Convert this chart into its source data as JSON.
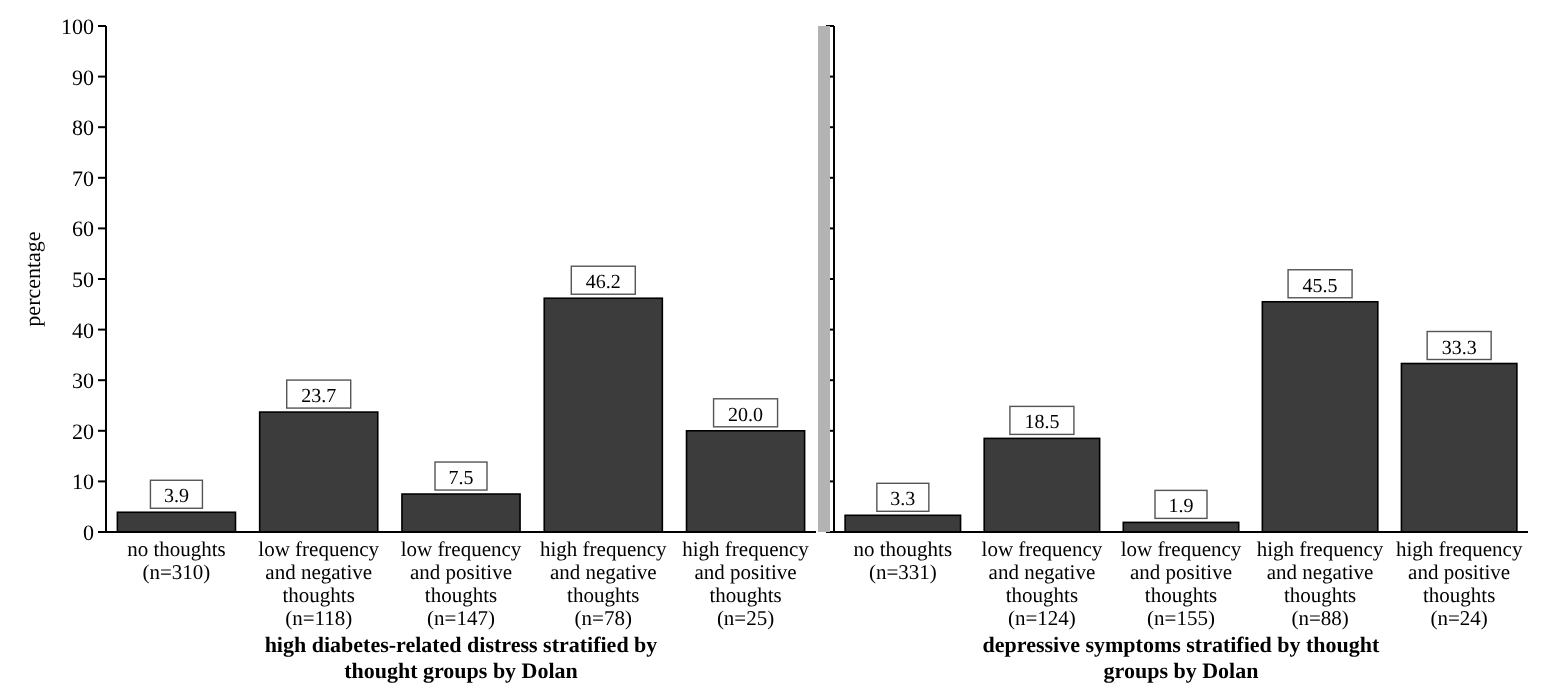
{
  "chart_data": [
    {
      "type": "bar",
      "ylabel": "percentage",
      "xlabel": "high diabetes-related distress stratified by thought groups by Dolan",
      "categories": [
        "no thoughts\n(n=310)",
        "low frequency\nand negative\nthoughts\n(n=118)",
        "low frequency\nand positive\nthoughts\n(n=147)",
        "high frequency\nand negative\nthoughts\n(n=78)",
        "high frequency\nand positive\nthoughts\n(n=25)"
      ],
      "values": [
        3.9,
        23.7,
        7.5,
        46.2,
        20.0
      ],
      "value_labels": [
        "3.9",
        "23.7",
        "7.5",
        "46.2",
        "20.0"
      ],
      "color": "#3c3c3c",
      "ylim": [
        0,
        100
      ],
      "yticks": [
        0,
        10,
        20,
        30,
        40,
        50,
        60,
        70,
        80,
        90,
        100
      ],
      "grid": false
    },
    {
      "type": "bar",
      "xlabel": "depressive symptoms stratified by thought groups by Dolan",
      "categories": [
        "no thoughts\n(n=331)",
        "low frequency\nand negative\nthoughts\n(n=124)",
        "low frequency\nand positive\nthoughts\n(n=155)",
        "high frequency\nand negative\nthoughts\n(n=88)",
        "high frequency\nand positive\nthoughts\n(n=24)"
      ],
      "values": [
        3.3,
        18.5,
        1.9,
        45.5,
        33.3
      ],
      "value_labels": [
        "3.3",
        "18.5",
        "1.9",
        "45.5",
        "33.3"
      ],
      "color": "#3c3c3c",
      "ylim": [
        0,
        100
      ],
      "yticks": [
        0,
        10,
        20,
        30,
        40,
        50,
        60,
        70,
        80,
        90,
        100
      ],
      "grid": false,
      "tick_labels": "x"
    }
  ]
}
